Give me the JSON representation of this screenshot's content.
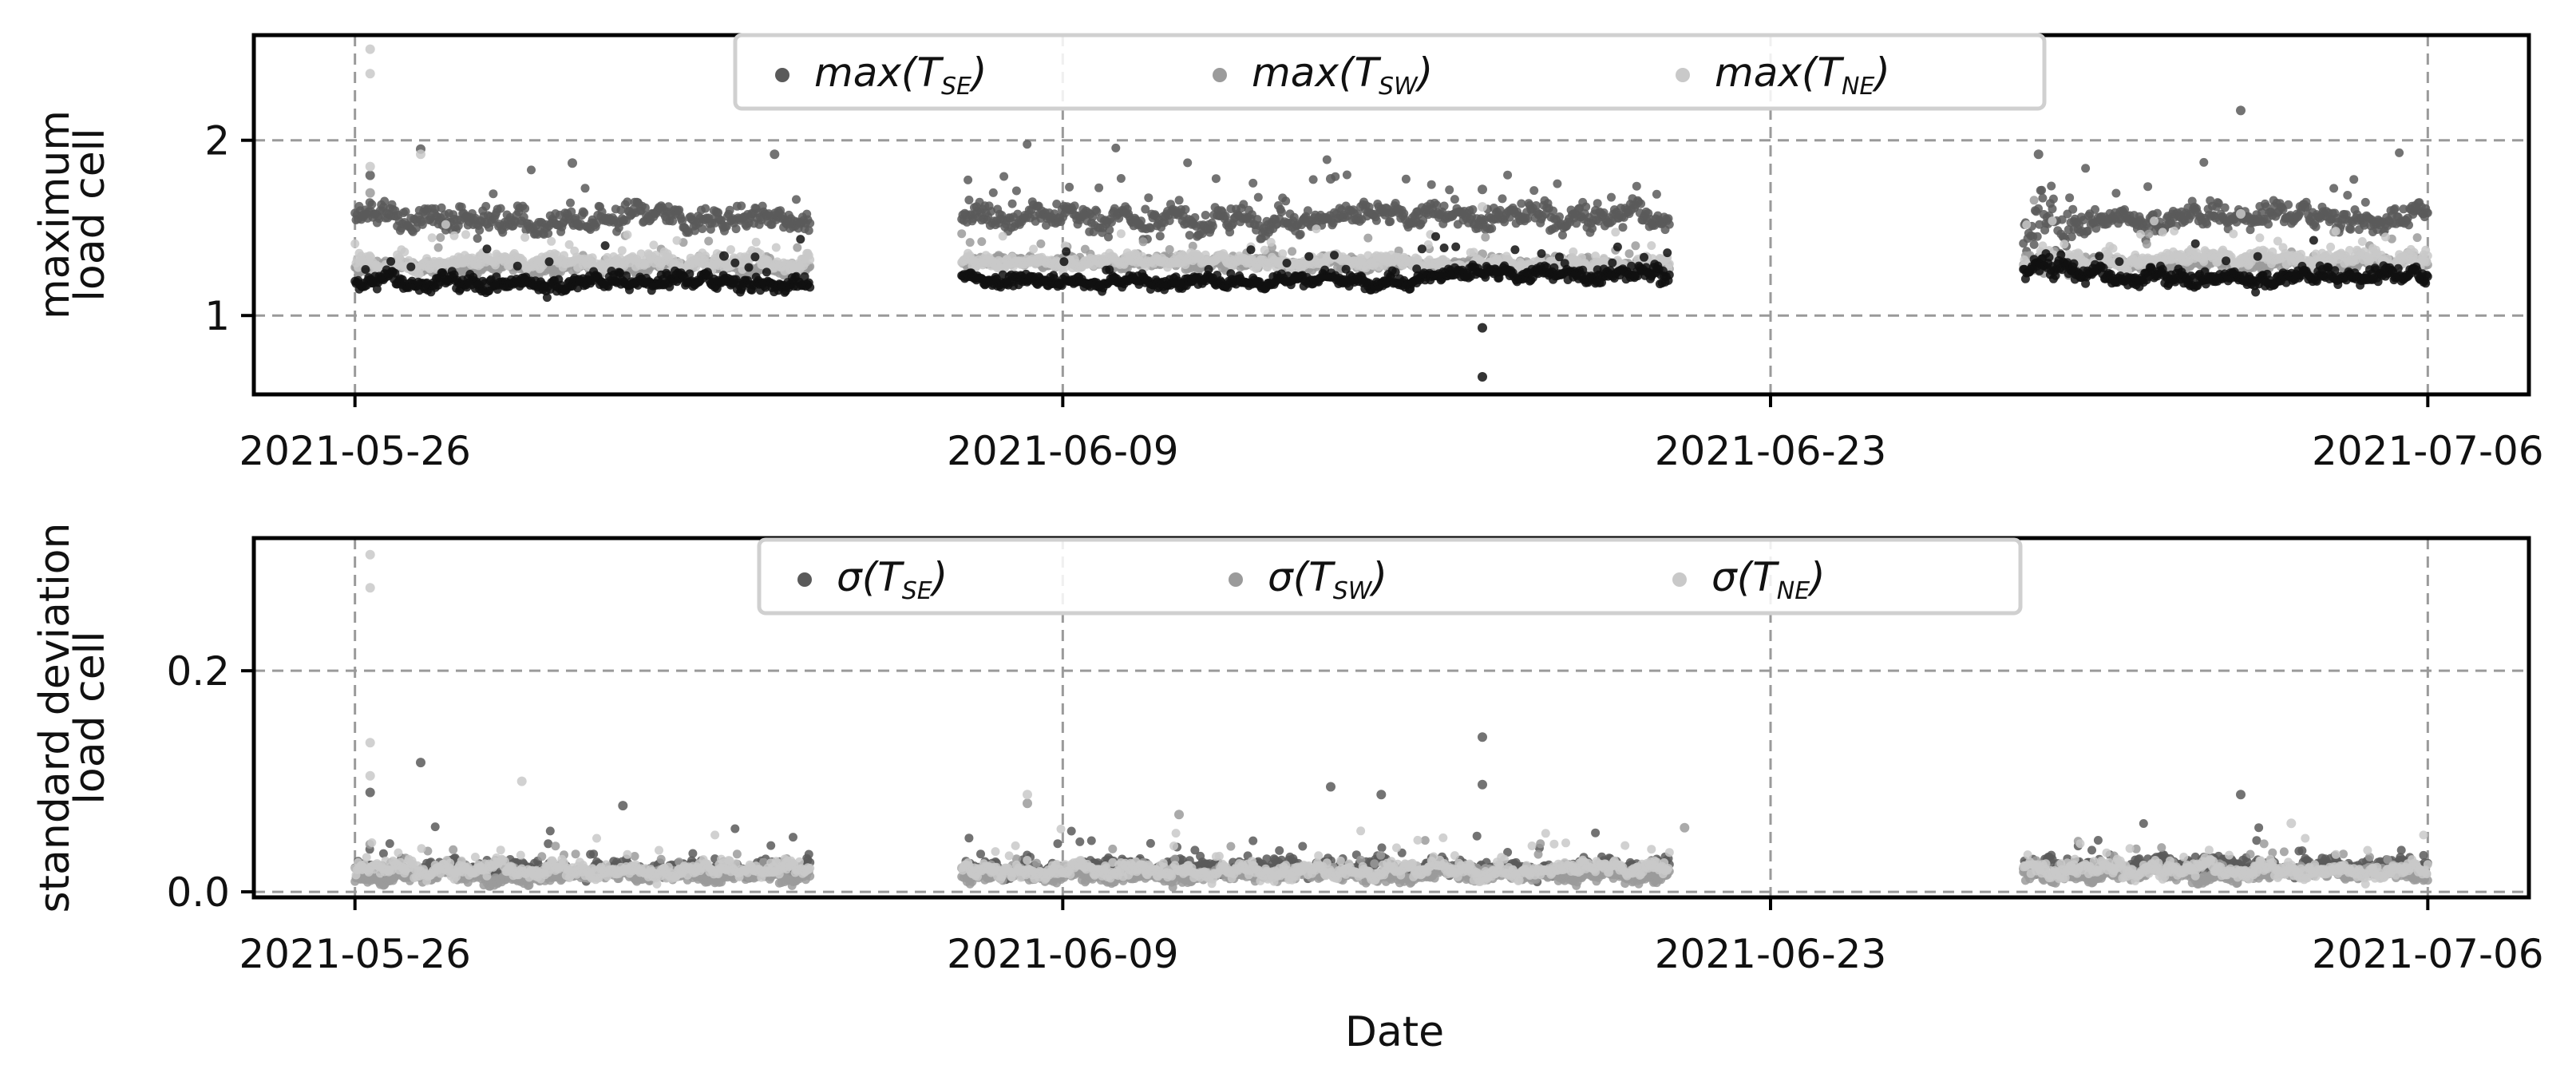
{
  "chart_data": [
    {
      "type": "scatter",
      "title": "",
      "xlabel": "",
      "ylabel_lines": [
        "maximum",
        "load cell"
      ],
      "x_type": "date",
      "xlim": [
        "2021-05-24",
        "2021-07-08"
      ],
      "xticks": [
        "2021-05-26",
        "2021-06-09",
        "2021-06-23",
        "2021-07-06"
      ],
      "ylim": [
        0.55,
        2.6
      ],
      "yticks": [
        1,
        2
      ],
      "grid": true,
      "legend": {
        "position": "top-center",
        "columns": 3
      },
      "series": [
        {
          "label_prefix": "max(T",
          "label_sub": "SE",
          "label_suffix": ")",
          "color": "#5a5a5a",
          "segments": [
            {
              "start": "2021-05-26",
              "end": "2021-06-04",
              "level": 1.55,
              "spread": 0.06
            },
            {
              "start": "2021-06-07",
              "end": "2021-06-16",
              "level": 1.56,
              "spread": 0.06
            },
            {
              "start": "2021-06-16",
              "end": "2021-06-21",
              "level": 1.56,
              "spread": 0.06
            },
            {
              "start": "2021-06-28",
              "end": "2021-06-29",
              "level": 1.5,
              "spread": 0.15
            },
            {
              "start": "2021-06-29",
              "end": "2021-07-06",
              "level": 1.56,
              "spread": 0.06
            }
          ],
          "outliers": [
            {
              "x": "2021-05-26",
              "y": 1.8
            },
            {
              "x": "2021-05-27",
              "y": 1.95
            },
            {
              "x": "2021-05-30",
              "y": 1.87
            },
            {
              "x": "2021-06-03",
              "y": 1.92
            },
            {
              "x": "2021-06-14",
              "y": 1.78
            },
            {
              "x": "2021-06-17",
              "y": 1.72
            },
            {
              "x": "2021-06-28",
              "y": 1.92
            },
            {
              "x": "2021-07-02",
              "y": 2.17
            }
          ]
        },
        {
          "label_prefix": "max(T",
          "label_sub": "SW",
          "label_suffix": ")",
          "color": "#9b9b9b",
          "segments": [
            {
              "start": "2021-05-26",
              "end": "2021-06-04",
              "level": 1.28,
              "spread": 0.03
            },
            {
              "start": "2021-06-07",
              "end": "2021-06-16",
              "level": 1.3,
              "spread": 0.03
            },
            {
              "start": "2021-06-16",
              "end": "2021-06-21",
              "level": 1.29,
              "spread": 0.03
            },
            {
              "start": "2021-06-28",
              "end": "2021-06-29",
              "level": 1.28,
              "spread": 0.06
            },
            {
              "start": "2021-06-29",
              "end": "2021-07-06",
              "level": 1.3,
              "spread": 0.03
            }
          ],
          "outliers": [
            {
              "x": "2021-05-26",
              "y": 1.7
            },
            {
              "x": "2021-06-17",
              "y": 1.35
            }
          ]
        },
        {
          "label_prefix": "max(T",
          "label_sub": "NE",
          "label_suffix": ")",
          "color": "#c9c9c9",
          "segments": [
            {
              "start": "2021-05-26",
              "end": "2021-06-04",
              "level": 1.3,
              "spread": 0.04
            },
            {
              "start": "2021-06-07",
              "end": "2021-06-16",
              "level": 1.31,
              "spread": 0.03
            },
            {
              "start": "2021-06-16",
              "end": "2021-06-21",
              "level": 1.3,
              "spread": 0.03
            },
            {
              "start": "2021-06-28",
              "end": "2021-06-29",
              "level": 1.3,
              "spread": 0.05
            },
            {
              "start": "2021-06-29",
              "end": "2021-07-06",
              "level": 1.32,
              "spread": 0.04
            }
          ],
          "outliers": [
            {
              "x": "2021-05-26",
              "y": 2.52
            },
            {
              "x": "2021-05-26",
              "y": 2.38
            },
            {
              "x": "2021-05-27",
              "y": 1.92
            },
            {
              "x": "2021-05-26",
              "y": 1.85
            },
            {
              "x": "2021-06-17",
              "y": 1.62
            },
            {
              "x": "2021-07-02",
              "y": 1.58
            }
          ]
        },
        {
          "label_prefix": "",
          "label_sub": "",
          "label_suffix": "",
          "color": "#111111",
          "segments": [
            {
              "start": "2021-05-26",
              "end": "2021-06-04",
              "level": 1.19,
              "spread": 0.04
            },
            {
              "start": "2021-06-07",
              "end": "2021-06-16",
              "level": 1.2,
              "spread": 0.03
            },
            {
              "start": "2021-06-16",
              "end": "2021-06-21",
              "level": 1.23,
              "spread": 0.04
            },
            {
              "start": "2021-06-28",
              "end": "2021-06-29",
              "level": 1.28,
              "spread": 0.05
            },
            {
              "start": "2021-06-29",
              "end": "2021-07-06",
              "level": 1.22,
              "spread": 0.04
            }
          ],
          "outliers": [
            {
              "x": "2021-06-17",
              "y": 0.93
            },
            {
              "x": "2021-06-17",
              "y": 0.65
            },
            {
              "x": "2021-06-02",
              "y": 1.34
            }
          ]
        }
      ]
    },
    {
      "type": "scatter",
      "title": "",
      "xlabel": "Date",
      "ylabel_lines": [
        "standard deviation",
        "load cell"
      ],
      "x_type": "date",
      "xlim": [
        "2021-05-24",
        "2021-07-08"
      ],
      "xticks": [
        "2021-05-26",
        "2021-06-09",
        "2021-06-23",
        "2021-07-06"
      ],
      "ylim": [
        -0.005,
        0.32
      ],
      "yticks": [
        0.0,
        0.2
      ],
      "ytick_format": "0.1f",
      "grid": true,
      "legend": {
        "position": "top-center",
        "columns": 3
      },
      "series": [
        {
          "label_prefix": "σ(T",
          "label_sub": "SE",
          "label_suffix": ")",
          "color": "#5a5a5a",
          "segments": [
            {
              "start": "2021-05-26",
              "end": "2021-06-04",
              "level": 0.022,
              "spread": 0.006
            },
            {
              "start": "2021-06-07",
              "end": "2021-06-16",
              "level": 0.022,
              "spread": 0.006
            },
            {
              "start": "2021-06-16",
              "end": "2021-06-21",
              "level": 0.022,
              "spread": 0.006
            },
            {
              "start": "2021-06-28",
              "end": "2021-06-29",
              "level": 0.022,
              "spread": 0.008
            },
            {
              "start": "2021-06-29",
              "end": "2021-07-06",
              "level": 0.025,
              "spread": 0.006
            }
          ],
          "outliers": [
            {
              "x": "2021-06-17",
              "y": 0.14
            },
            {
              "x": "2021-06-17",
              "y": 0.097
            },
            {
              "x": "2021-05-27",
              "y": 0.117
            },
            {
              "x": "2021-05-26",
              "y": 0.09
            },
            {
              "x": "2021-06-14",
              "y": 0.095
            },
            {
              "x": "2021-07-02",
              "y": 0.088
            },
            {
              "x": "2021-05-31",
              "y": 0.078
            },
            {
              "x": "2021-06-15",
              "y": 0.088
            }
          ]
        },
        {
          "label_prefix": "σ(T",
          "label_sub": "SW",
          "label_suffix": ")",
          "color": "#9b9b9b",
          "segments": [
            {
              "start": "2021-05-26",
              "end": "2021-06-04",
              "level": 0.014,
              "spread": 0.005
            },
            {
              "start": "2021-06-07",
              "end": "2021-06-16",
              "level": 0.015,
              "spread": 0.005
            },
            {
              "start": "2021-06-16",
              "end": "2021-06-21",
              "level": 0.016,
              "spread": 0.005
            },
            {
              "start": "2021-06-28",
              "end": "2021-06-29",
              "level": 0.016,
              "spread": 0.006
            },
            {
              "start": "2021-06-29",
              "end": "2021-07-06",
              "level": 0.016,
              "spread": 0.005
            }
          ],
          "outliers": [
            {
              "x": "2021-06-08",
              "y": 0.08
            },
            {
              "x": "2021-06-11",
              "y": 0.07
            },
            {
              "x": "2021-06-21",
              "y": 0.058
            }
          ]
        },
        {
          "label_prefix": "σ(T",
          "label_sub": "NE",
          "label_suffix": ")",
          "color": "#c9c9c9",
          "segments": [
            {
              "start": "2021-05-26",
              "end": "2021-06-04",
              "level": 0.02,
              "spread": 0.006
            },
            {
              "start": "2021-06-07",
              "end": "2021-06-16",
              "level": 0.02,
              "spread": 0.006
            },
            {
              "start": "2021-06-16",
              "end": "2021-06-21",
              "level": 0.02,
              "spread": 0.006
            },
            {
              "start": "2021-06-28",
              "end": "2021-06-29",
              "level": 0.02,
              "spread": 0.007
            },
            {
              "start": "2021-06-29",
              "end": "2021-07-06",
              "level": 0.02,
              "spread": 0.006
            }
          ],
          "outliers": [
            {
              "x": "2021-05-26",
              "y": 0.305
            },
            {
              "x": "2021-05-26",
              "y": 0.275
            },
            {
              "x": "2021-05-26",
              "y": 0.135
            },
            {
              "x": "2021-05-26",
              "y": 0.105
            },
            {
              "x": "2021-05-29",
              "y": 0.1
            },
            {
              "x": "2021-06-08",
              "y": 0.088
            },
            {
              "x": "2021-07-03",
              "y": 0.062
            }
          ]
        }
      ]
    }
  ]
}
